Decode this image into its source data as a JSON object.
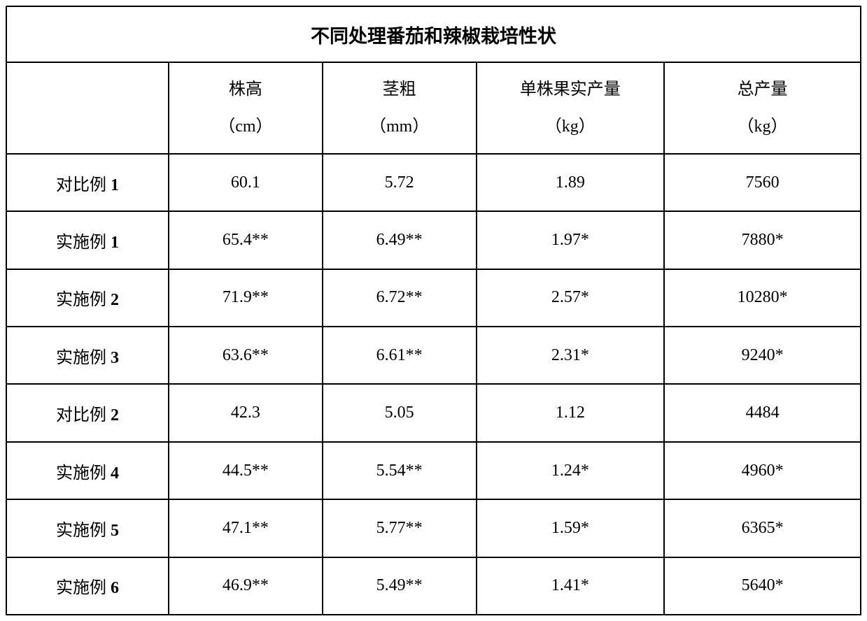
{
  "table": {
    "title": "不同处理番茄和辣椒栽培性状",
    "columns": [
      {
        "label": "",
        "unit": ""
      },
      {
        "label": "株高",
        "unit": "（cm）"
      },
      {
        "label": "茎粗",
        "unit": "（mm）"
      },
      {
        "label": "单株果实产量",
        "unit": "（kg）"
      },
      {
        "label": "总产量",
        "unit": "（kg）"
      }
    ],
    "rows": [
      {
        "label_prefix": "对比例",
        "label_num": "1",
        "values": [
          "60.1",
          "5.72",
          "1.89",
          "7560"
        ]
      },
      {
        "label_prefix": "实施例",
        "label_num": "1",
        "values": [
          "65.4**",
          "6.49**",
          "1.97*",
          "7880*"
        ]
      },
      {
        "label_prefix": "实施例",
        "label_num": "2",
        "values": [
          "71.9**",
          "6.72**",
          "2.57*",
          "10280*"
        ]
      },
      {
        "label_prefix": "实施例",
        "label_num": "3",
        "values": [
          "63.6**",
          "6.61**",
          "2.31*",
          "9240*"
        ]
      },
      {
        "label_prefix": "对比例",
        "label_num": "2",
        "values": [
          "42.3",
          "5.05",
          "1.12",
          "4484"
        ]
      },
      {
        "label_prefix": "实施例",
        "label_num": "4",
        "values": [
          "44.5**",
          "5.54**",
          "1.24*",
          "4960*"
        ]
      },
      {
        "label_prefix": "实施例",
        "label_num": "5",
        "values": [
          "47.1**",
          "5.77**",
          "1.59*",
          "6365*"
        ]
      },
      {
        "label_prefix": "实施例",
        "label_num": "6",
        "values": [
          "46.9**",
          "5.49**",
          "1.41*",
          "5640*"
        ]
      }
    ],
    "styling": {
      "border_color": "#000000",
      "border_width": 2,
      "background_color": "#ffffff",
      "text_color": "#000000",
      "title_fontsize": 27,
      "header_fontsize": 24,
      "cell_fontsize": 24,
      "font_family": "SimSun"
    }
  }
}
